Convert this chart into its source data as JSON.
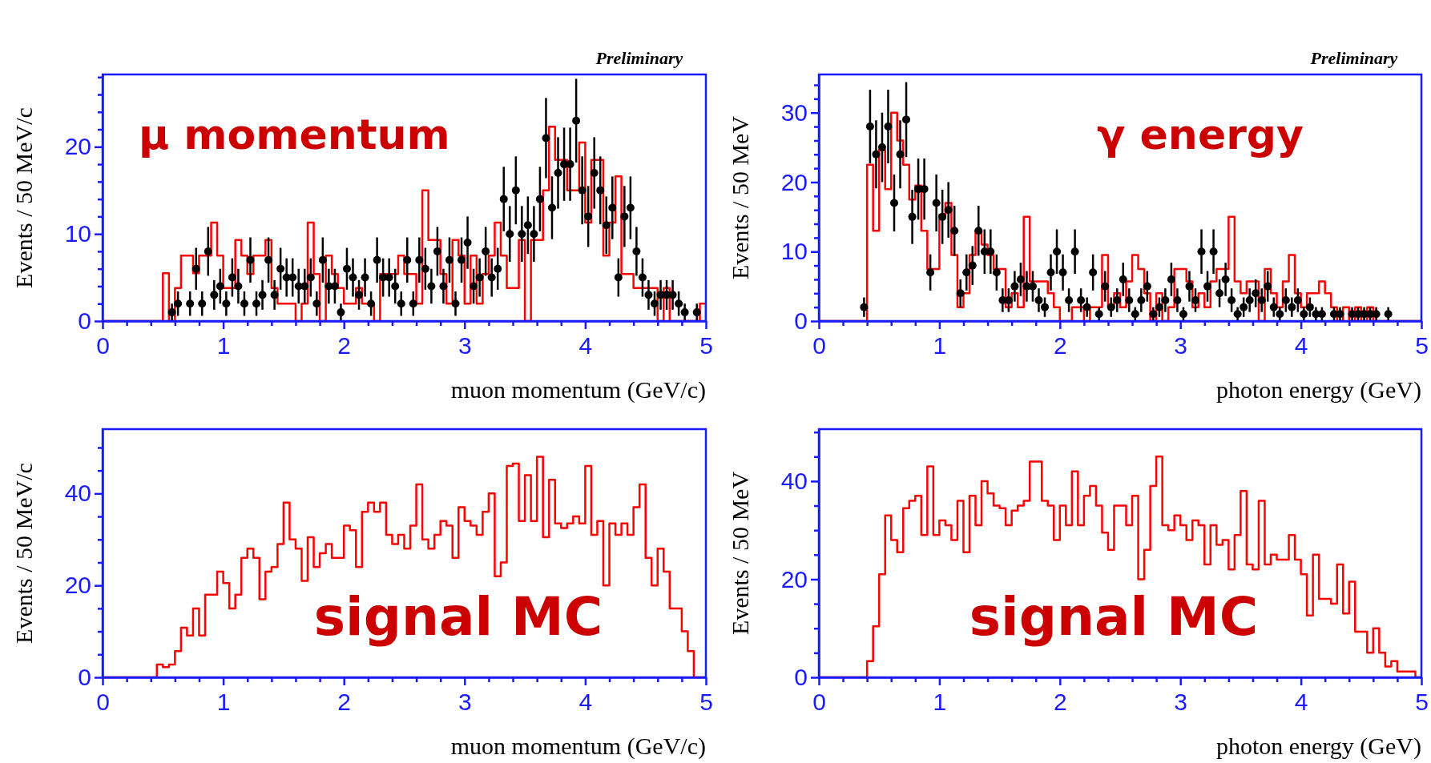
{
  "chart_data": [
    {
      "type": "histogram",
      "xlabel": "muon momentum (GeV/c)",
      "ylabel": "Events / 50 MeV/c",
      "annotations": [
        "Preliminary",
        "μ  momentum"
      ],
      "bins": [
        0,
        0.05,
        0.1,
        0.15,
        0.2,
        0.25,
        0.3,
        0.35,
        0.4,
        0.45,
        0.5,
        0.55,
        0.6,
        0.65,
        0.7,
        0.75,
        0.8,
        0.85,
        0.9,
        0.95,
        1,
        1.05,
        1.1,
        1.15,
        1.2,
        1.25,
        1.3,
        1.35,
        1.4,
        1.45,
        1.5,
        1.55,
        1.6,
        1.65,
        1.7,
        1.75,
        1.8,
        1.85,
        1.9,
        1.95,
        2,
        2.05,
        2.1,
        2.15,
        2.2,
        2.25,
        2.3,
        2.35,
        2.4,
        2.45,
        2.5,
        2.55,
        2.6,
        2.65,
        2.7,
        2.75,
        2.8,
        2.85,
        2.9,
        2.95,
        3,
        3.05,
        3.1,
        3.15,
        3.2,
        3.25,
        3.3,
        3.35,
        3.4,
        3.45,
        3.5,
        3.55,
        3.6,
        3.65,
        3.7,
        3.75,
        3.8,
        3.85,
        3.9,
        3.95,
        4,
        4.05,
        4.1,
        4.15,
        4.2,
        4.25,
        4.3,
        4.35,
        4.4,
        4.45,
        4.5,
        4.55,
        4.6,
        4.65,
        4.7,
        4.75,
        4.8,
        4.85,
        4.9,
        4.95,
        5
      ],
      "series": [
        {
          "type": "histogram",
          "color": "#ff0000",
          "values": [
            0,
            0,
            0,
            0,
            0,
            0,
            0,
            0,
            0,
            0,
            5.5,
            0,
            3.8,
            7.5,
            7.5,
            5.5,
            7.5,
            7.5,
            11.3,
            7.5,
            3.8,
            3.8,
            9.3,
            7.5,
            5.4,
            7.5,
            7.5,
            9.3,
            3.8,
            2,
            2,
            2,
            0,
            2,
            11.3,
            5.4,
            0,
            7.5,
            5.4,
            3.8,
            2,
            2,
            3.8,
            2,
            2,
            0,
            5.4,
            5.4,
            5.4,
            7.5,
            5.4,
            5.4,
            2,
            15,
            9.3,
            9.3,
            5.4,
            2,
            9.3,
            7.5,
            2,
            7.5,
            2,
            5.4,
            7.5,
            11.3,
            7.5,
            3.8,
            3.8,
            9.3,
            0,
            9.3,
            9.3,
            15,
            22.3,
            18.5,
            18.5,
            15,
            15,
            20.5,
            11.3,
            18.5,
            18.5,
            7.5,
            11.3,
            16.6,
            5.4,
            5.4,
            3.8,
            3.8,
            3.8,
            3.8,
            0,
            3.8,
            0,
            0,
            0,
            0,
            0,
            2
          ]
        },
        {
          "type": "scatter",
          "color": "#000000",
          "x": [
            0.575,
            0.625,
            0.675,
            0.725,
            0.775,
            0.825,
            0.875,
            0.925,
            0.975,
            1.025,
            1.075,
            1.125,
            1.175,
            1.225,
            1.275,
            1.325,
            1.375,
            1.425,
            1.475,
            1.525,
            1.575,
            1.625,
            1.675,
            1.725,
            1.775,
            1.825,
            1.875,
            1.925,
            1.975,
            2.025,
            2.075,
            2.125,
            2.175,
            2.225,
            2.275,
            2.325,
            2.375,
            2.425,
            2.475,
            2.525,
            2.575,
            2.625,
            2.675,
            2.725,
            2.775,
            2.825,
            2.875,
            2.925,
            2.975,
            3.025,
            3.075,
            3.125,
            3.175,
            3.225,
            3.275,
            3.325,
            3.375,
            3.425,
            3.475,
            3.525,
            3.575,
            3.625,
            3.675,
            3.725,
            3.775,
            3.825,
            3.875,
            3.925,
            3.975,
            4.025,
            4.075,
            4.125,
            4.175,
            4.225,
            4.275,
            4.325,
            4.375,
            4.425,
            4.475,
            4.525,
            4.575,
            4.625,
            4.675,
            4.725,
            4.775,
            4.825,
            4.875,
            4.925
          ],
          "marker": "circle",
          "values": [
            1,
            2,
            null,
            2,
            6,
            2,
            8,
            3,
            4,
            2,
            5,
            4,
            2,
            7,
            2,
            3,
            7,
            3,
            6,
            5,
            5,
            4,
            4,
            5,
            2,
            7,
            4,
            4,
            1,
            6,
            5,
            3,
            5,
            2,
            7,
            5,
            5,
            4,
            2,
            7,
            2,
            7,
            6,
            4,
            8,
            4,
            7,
            2,
            7,
            9,
            4,
            5,
            8,
            5,
            6,
            14,
            10,
            15,
            10,
            11,
            10,
            14,
            21,
            13,
            17,
            18,
            18,
            23,
            15,
            12,
            17,
            15,
            11,
            13,
            5,
            12,
            13,
            8,
            5,
            3,
            2,
            3,
            3,
            3,
            2,
            1,
            null,
            1
          ],
          "errors": [
            1,
            1.4,
            null,
            1.4,
            2.4,
            1.4,
            2.8,
            1.7,
            2,
            1.4,
            2.2,
            2,
            1.4,
            2.6,
            1.4,
            1.7,
            2.6,
            1.7,
            2.4,
            2.2,
            2.2,
            2,
            2,
            2.2,
            1.4,
            2.6,
            2,
            2,
            1,
            2.4,
            2.2,
            1.7,
            2.2,
            1.4,
            2.6,
            2.2,
            2.2,
            2,
            1.4,
            2.6,
            1.4,
            2.6,
            2.4,
            2,
            2.8,
            2,
            2.6,
            1.4,
            2.6,
            3,
            2,
            2.2,
            2.8,
            2.2,
            2.4,
            3.7,
            3.2,
            3.9,
            3.2,
            3.3,
            3.2,
            3.7,
            4.6,
            3.6,
            4.1,
            4.2,
            4.2,
            4.8,
            3.9,
            3.5,
            4.1,
            3.9,
            3.3,
            3.6,
            2.2,
            3.5,
            3.6,
            2.8,
            2.2,
            1.7,
            1.4,
            1.7,
            1.7,
            1.7,
            1.4,
            1,
            null,
            1
          ]
        }
      ],
      "xlim": [
        0,
        5
      ],
      "xticks": [
        0,
        {
          "value": 0.2,
          "label": null
        },
        {
          "value": 0.4,
          "label": null
        },
        {
          "value": 0.6,
          "label": null
        },
        {
          "value": 0.8,
          "label": null
        },
        1,
        {
          "value": 1.2,
          "label": null
        },
        {
          "value": 1.4,
          "label": null
        },
        {
          "value": 1.6,
          "label": null
        },
        {
          "value": 1.8,
          "label": null
        },
        2,
        {
          "value": 2.2,
          "label": null
        },
        {
          "value": 2.4,
          "label": null
        },
        {
          "value": 2.6,
          "label": null
        },
        {
          "value": 2.8,
          "label": null
        },
        3,
        {
          "value": 3.2,
          "label": null
        },
        {
          "value": 3.4,
          "label": null
        },
        {
          "value": 3.6,
          "label": null
        },
        {
          "value": 3.8,
          "label": null
        },
        4,
        {
          "value": 4.2,
          "label": null
        },
        {
          "value": 4.4,
          "label": null
        },
        {
          "value": 4.6,
          "label": null
        },
        {
          "value": 4.8,
          "label": null
        },
        5
      ],
      "ylim": [
        0,
        28.3
      ],
      "yticks": [
        0,
        {
          "value": 2,
          "label": null
        },
        {
          "value": 4,
          "label": null
        },
        {
          "value": 6,
          "label": null
        },
        {
          "value": 8,
          "label": null
        },
        10,
        {
          "value": 12,
          "label": null
        },
        {
          "value": 14,
          "label": null
        },
        {
          "value": 16,
          "label": null
        },
        {
          "value": 18,
          "label": null
        },
        20,
        {
          "value": 22,
          "label": null
        },
        {
          "value": 24,
          "label": null
        },
        {
          "value": 26,
          "label": null
        },
        {
          "value": 28,
          "label": null
        }
      ]
    },
    {
      "type": "histogram",
      "xlabel": "photon energy (GeV)",
      "ylabel": "Events / 50 MeV",
      "annotations": [
        "Preliminary",
        "γ  energy"
      ],
      "bins": [
        0,
        0.05,
        0.1,
        0.15,
        0.2,
        0.25,
        0.3,
        0.35,
        0.4,
        0.45,
        0.5,
        0.55,
        0.6,
        0.65,
        0.7,
        0.75,
        0.8,
        0.85,
        0.9,
        0.95,
        1,
        1.05,
        1.1,
        1.15,
        1.2,
        1.25,
        1.3,
        1.35,
        1.4,
        1.45,
        1.5,
        1.55,
        1.6,
        1.65,
        1.7,
        1.75,
        1.8,
        1.85,
        1.9,
        1.95,
        2,
        2.05,
        2.1,
        2.15,
        2.2,
        2.25,
        2.3,
        2.35,
        2.4,
        2.45,
        2.5,
        2.55,
        2.6,
        2.65,
        2.7,
        2.75,
        2.8,
        2.85,
        2.9,
        2.95,
        3,
        3.05,
        3.1,
        3.15,
        3.2,
        3.25,
        3.3,
        3.35,
        3.4,
        3.45,
        3.5,
        3.55,
        3.6,
        3.65,
        3.7,
        3.75,
        3.8,
        3.85,
        3.9,
        3.95,
        4,
        4.05,
        4.1,
        4.15,
        4.2,
        4.25,
        4.3,
        4.35,
        4.4,
        4.45,
        4.5,
        4.55,
        4.6,
        4.65,
        4.7,
        4.75,
        4.8,
        4.85,
        4.9,
        4.95,
        5
      ],
      "series": [
        {
          "type": "histogram",
          "color": "#ff0000",
          "values": [
            0,
            0,
            0,
            0,
            0,
            0,
            0,
            0,
            22.5,
            13,
            24.6,
            19,
            30,
            26,
            22.5,
            17.5,
            19.5,
            13,
            7.5,
            7.5,
            15.3,
            17,
            9.5,
            2,
            4,
            9.5,
            13,
            11,
            9.5,
            7.5,
            7.5,
            2,
            4,
            2,
            15,
            5.7,
            5.7,
            5.7,
            4,
            2,
            0,
            0,
            2,
            2,
            0,
            2,
            2,
            9.5,
            2,
            4,
            2,
            5.7,
            9.5,
            7.5,
            4,
            0,
            4,
            0,
            2,
            7.5,
            7.5,
            5.7,
            2,
            4,
            2,
            5.7,
            7.5,
            7.5,
            15,
            5.7,
            4,
            5.7,
            5.7,
            0,
            7.5,
            4,
            2,
            5.7,
            9.5,
            4,
            2,
            4,
            4,
            5.7,
            4,
            2,
            0,
            2,
            0,
            2,
            0,
            2,
            0,
            0,
            0,
            0,
            0,
            0,
            0,
            0
          ]
        },
        {
          "type": "scatter",
          "color": "#000000",
          "x": [
            0.375,
            0.425,
            0.475,
            0.525,
            0.575,
            0.625,
            0.675,
            0.725,
            0.775,
            0.825,
            0.875,
            0.925,
            0.975,
            1.025,
            1.075,
            1.125,
            1.175,
            1.225,
            1.275,
            1.325,
            1.375,
            1.425,
            1.475,
            1.525,
            1.575,
            1.625,
            1.675,
            1.725,
            1.775,
            1.825,
            1.875,
            1.925,
            1.975,
            2.025,
            2.075,
            2.125,
            2.175,
            2.225,
            2.275,
            2.325,
            2.375,
            2.425,
            2.475,
            2.525,
            2.575,
            2.625,
            2.675,
            2.725,
            2.775,
            2.825,
            2.875,
            2.925,
            2.975,
            3.025,
            3.075,
            3.125,
            3.175,
            3.225,
            3.275,
            3.325,
            3.375,
            3.425,
            3.475,
            3.525,
            3.575,
            3.625,
            3.675,
            3.725,
            3.775,
            3.825,
            3.875,
            3.925,
            3.975,
            4.025,
            4.075,
            4.125,
            4.175,
            4.225,
            4.275,
            4.325,
            4.375,
            4.425,
            4.475,
            4.525,
            4.575,
            4.625,
            4.675,
            4.725
          ],
          "marker": "circle",
          "values": [
            2,
            28,
            24,
            25,
            28,
            17,
            24,
            29,
            15,
            19,
            19,
            7,
            17,
            15,
            16,
            13,
            4,
            7,
            8,
            13,
            10,
            10,
            7,
            3,
            3,
            5,
            6,
            5,
            5,
            3,
            2,
            7,
            10,
            7,
            3,
            10,
            3,
            2,
            7,
            1,
            5,
            2,
            3,
            6,
            3,
            1,
            3,
            5,
            1,
            2,
            3,
            6,
            3,
            1,
            5,
            3,
            10,
            5,
            10,
            4,
            6,
            3,
            1,
            2,
            3,
            4,
            3,
            5,
            2,
            1,
            3,
            2,
            3,
            1,
            2,
            1,
            1,
            null,
            1,
            1,
            null,
            1,
            1,
            1,
            1,
            1,
            null,
            1
          ],
          "errors": [
            1.4,
            5.3,
            4.9,
            5,
            5.3,
            4.1,
            4.9,
            5.4,
            3.9,
            4.4,
            4.4,
            2.6,
            4.1,
            3.9,
            4,
            3.6,
            2,
            2.6,
            2.8,
            3.6,
            3.2,
            3.2,
            2.6,
            1.7,
            1.7,
            2.2,
            2.4,
            2.2,
            2.2,
            1.7,
            1.4,
            2.6,
            3.2,
            2.6,
            1.7,
            3.2,
            1.7,
            1.4,
            2.6,
            1,
            2.2,
            1.4,
            1.7,
            2.4,
            1.7,
            1,
            1.7,
            2.2,
            1,
            1.4,
            1.7,
            2.4,
            1.7,
            1,
            2.2,
            1.7,
            3.2,
            2.2,
            3.2,
            2,
            2.4,
            1.7,
            1,
            1.4,
            1.7,
            2,
            1.7,
            2.2,
            1.4,
            1,
            1.7,
            1.4,
            1.7,
            1,
            1.4,
            1,
            1,
            null,
            1,
            1,
            null,
            1,
            1,
            1,
            1,
            1,
            null,
            1
          ]
        }
      ],
      "xlim": [
        0,
        5
      ],
      "xticks": [
        0,
        {
          "value": 0.2,
          "label": null
        },
        {
          "value": 0.4,
          "label": null
        },
        {
          "value": 0.6,
          "label": null
        },
        {
          "value": 0.8,
          "label": null
        },
        1,
        {
          "value": 1.2,
          "label": null
        },
        {
          "value": 1.4,
          "label": null
        },
        {
          "value": 1.6,
          "label": null
        },
        {
          "value": 1.8,
          "label": null
        },
        2,
        {
          "value": 2.2,
          "label": null
        },
        {
          "value": 2.4,
          "label": null
        },
        {
          "value": 2.6,
          "label": null
        },
        {
          "value": 2.8,
          "label": null
        },
        3,
        {
          "value": 3.2,
          "label": null
        },
        {
          "value": 3.4,
          "label": null
        },
        {
          "value": 3.6,
          "label": null
        },
        {
          "value": 3.8,
          "label": null
        },
        4,
        {
          "value": 4.2,
          "label": null
        },
        {
          "value": 4.4,
          "label": null
        },
        {
          "value": 4.6,
          "label": null
        },
        {
          "value": 4.8,
          "label": null
        },
        5
      ],
      "ylim": [
        0,
        35.5
      ],
      "yticks": [
        0,
        {
          "value": 2,
          "label": null
        },
        {
          "value": 4,
          "label": null
        },
        {
          "value": 6,
          "label": null
        },
        {
          "value": 8,
          "label": null
        },
        10,
        {
          "value": 12,
          "label": null
        },
        {
          "value": 14,
          "label": null
        },
        {
          "value": 16,
          "label": null
        },
        {
          "value": 18,
          "label": null
        },
        20,
        {
          "value": 22,
          "label": null
        },
        {
          "value": 24,
          "label": null
        },
        {
          "value": 26,
          "label": null
        },
        {
          "value": 28,
          "label": null
        },
        30,
        {
          "value": 32,
          "label": null
        },
        {
          "value": 34,
          "label": null
        }
      ]
    },
    {
      "type": "histogram",
      "xlabel": "muon momentum (GeV/c)",
      "ylabel": "Events / 50 MeV/c",
      "annotations": [
        "signal MC"
      ],
      "color": "#ff0000",
      "bins": [
        0,
        0.05,
        0.1,
        0.15,
        0.2,
        0.25,
        0.3,
        0.35,
        0.4,
        0.45,
        0.5,
        0.55,
        0.6,
        0.65,
        0.7,
        0.75,
        0.8,
        0.85,
        0.9,
        0.95,
        1,
        1.05,
        1.1,
        1.15,
        1.2,
        1.25,
        1.3,
        1.35,
        1.4,
        1.45,
        1.5,
        1.55,
        1.6,
        1.65,
        1.7,
        1.75,
        1.8,
        1.85,
        1.9,
        1.95,
        2,
        2.05,
        2.1,
        2.15,
        2.2,
        2.25,
        2.3,
        2.35,
        2.4,
        2.45,
        2.5,
        2.55,
        2.6,
        2.65,
        2.7,
        2.75,
        2.8,
        2.85,
        2.9,
        2.95,
        3,
        3.05,
        3.1,
        3.15,
        3.2,
        3.25,
        3.3,
        3.35,
        3.4,
        3.45,
        3.5,
        3.55,
        3.6,
        3.65,
        3.7,
        3.75,
        3.8,
        3.85,
        3.9,
        3.95,
        4,
        4.05,
        4.1,
        4.15,
        4.2,
        4.25,
        4.3,
        4.35,
        4.4,
        4.45,
        4.5,
        4.55,
        4.6,
        4.65,
        4.7,
        4.75,
        4.8,
        4.85,
        4.9,
        4.95,
        5
      ],
      "values": [
        0,
        0,
        0,
        0,
        0,
        0,
        0,
        0,
        0,
        2.8,
        2.2,
        2.8,
        5.7,
        10.8,
        9.1,
        15,
        9.1,
        18,
        18,
        23,
        20.5,
        15,
        18,
        26,
        28,
        26,
        17,
        23,
        24,
        29,
        38,
        30,
        28,
        21,
        30.5,
        24,
        27,
        29,
        26,
        26,
        33,
        32,
        24,
        36,
        38,
        36,
        38,
        31,
        29,
        31,
        28,
        33,
        42,
        30,
        28,
        31,
        34,
        33,
        26,
        37,
        34,
        33,
        31,
        36,
        40,
        22,
        25,
        46,
        46.5,
        34,
        44,
        34,
        48,
        30.5,
        43,
        33.5,
        32.5,
        33.5,
        35,
        33.5,
        46,
        31,
        34,
        20,
        33.5,
        31,
        33.5,
        31,
        37,
        42,
        26,
        20,
        28,
        23,
        15,
        15,
        10,
        5.7,
        0,
        0
      ],
      "xlim": [
        0,
        5
      ],
      "xticks": [
        0,
        {
          "value": 0.2,
          "label": null
        },
        {
          "value": 0.4,
          "label": null
        },
        {
          "value": 0.6,
          "label": null
        },
        {
          "value": 0.8,
          "label": null
        },
        1,
        {
          "value": 1.2,
          "label": null
        },
        {
          "value": 1.4,
          "label": null
        },
        {
          "value": 1.6,
          "label": null
        },
        {
          "value": 1.8,
          "label": null
        },
        2,
        {
          "value": 2.2,
          "label": null
        },
        {
          "value": 2.4,
          "label": null
        },
        {
          "value": 2.6,
          "label": null
        },
        {
          "value": 2.8,
          "label": null
        },
        3,
        {
          "value": 3.2,
          "label": null
        },
        {
          "value": 3.4,
          "label": null
        },
        {
          "value": 3.6,
          "label": null
        },
        {
          "value": 3.8,
          "label": null
        },
        4,
        {
          "value": 4.2,
          "label": null
        },
        {
          "value": 4.4,
          "label": null
        },
        {
          "value": 4.6,
          "label": null
        },
        {
          "value": 4.8,
          "label": null
        },
        5
      ],
      "ylim": [
        0,
        54
      ],
      "yticks": [
        0,
        {
          "value": 5,
          "label": null
        },
        {
          "value": 10,
          "label": null
        },
        {
          "value": 15,
          "label": null
        },
        20,
        {
          "value": 25,
          "label": null
        },
        {
          "value": 30,
          "label": null
        },
        {
          "value": 35,
          "label": null
        },
        40,
        {
          "value": 45,
          "label": null
        },
        {
          "value": 50,
          "label": null
        }
      ]
    },
    {
      "type": "histogram",
      "xlabel": "photon energy (GeV)",
      "ylabel": "Events / 50 MeV",
      "annotations": [
        "signal MC"
      ],
      "color": "#ff0000",
      "bins": [
        0,
        0.05,
        0.1,
        0.15,
        0.2,
        0.25,
        0.3,
        0.35,
        0.4,
        0.45,
        0.5,
        0.55,
        0.6,
        0.65,
        0.7,
        0.75,
        0.8,
        0.85,
        0.9,
        0.95,
        1,
        1.05,
        1.1,
        1.15,
        1.2,
        1.25,
        1.3,
        1.35,
        1.4,
        1.45,
        1.5,
        1.55,
        1.6,
        1.65,
        1.7,
        1.75,
        1.8,
        1.85,
        1.9,
        1.95,
        2,
        2.05,
        2.1,
        2.15,
        2.2,
        2.25,
        2.3,
        2.35,
        2.4,
        2.45,
        2.5,
        2.55,
        2.6,
        2.65,
        2.7,
        2.75,
        2.8,
        2.85,
        2.9,
        2.95,
        3,
        3.05,
        3.1,
        3.15,
        3.2,
        3.25,
        3.3,
        3.35,
        3.4,
        3.45,
        3.5,
        3.55,
        3.6,
        3.65,
        3.7,
        3.75,
        3.8,
        3.85,
        3.9,
        3.95,
        4,
        4.05,
        4.1,
        4.15,
        4.2,
        4.25,
        4.3,
        4.35,
        4.4,
        4.45,
        4.5,
        4.55,
        4.6,
        4.65,
        4.7,
        4.75,
        4.8,
        4.85,
        4.9,
        4.95,
        5
      ],
      "values": [
        0,
        0,
        0,
        0,
        0,
        0,
        0,
        0,
        3.3,
        10.4,
        21,
        33,
        28,
        25.5,
        34.5,
        36,
        37,
        29,
        43,
        29,
        32,
        31,
        28,
        36,
        25.5,
        37,
        31,
        40,
        37.5,
        35,
        34.5,
        31,
        34,
        35,
        36,
        44,
        44,
        36,
        35,
        28,
        35,
        31,
        42,
        31,
        37,
        39,
        35,
        29.5,
        26,
        35,
        35,
        31,
        37,
        20,
        26,
        39,
        45,
        31,
        30,
        33,
        31,
        28,
        32,
        31,
        23,
        31,
        27,
        28,
        22,
        29,
        38,
        23,
        22,
        36,
        23,
        25,
        24,
        24,
        29,
        24,
        21,
        12.6,
        25,
        16,
        16,
        15,
        23,
        13,
        19.5,
        9.3,
        9.3,
        5,
        10,
        5,
        2.2,
        3.3,
        1.2,
        1.2,
        1.2,
        0
      ],
      "xlim": [
        0,
        5
      ],
      "xticks": [
        0,
        {
          "value": 0.2,
          "label": null
        },
        {
          "value": 0.4,
          "label": null
        },
        {
          "value": 0.6,
          "label": null
        },
        {
          "value": 0.8,
          "label": null
        },
        1,
        {
          "value": 1.2,
          "label": null
        },
        {
          "value": 1.4,
          "label": null
        },
        {
          "value": 1.6,
          "label": null
        },
        {
          "value": 1.8,
          "label": null
        },
        2,
        {
          "value": 2.2,
          "label": null
        },
        {
          "value": 2.4,
          "label": null
        },
        {
          "value": 2.6,
          "label": null
        },
        {
          "value": 2.8,
          "label": null
        },
        3,
        {
          "value": 3.2,
          "label": null
        },
        {
          "value": 3.4,
          "label": null
        },
        {
          "value": 3.6,
          "label": null
        },
        {
          "value": 3.8,
          "label": null
        },
        4,
        {
          "value": 4.2,
          "label": null
        },
        {
          "value": 4.4,
          "label": null
        },
        {
          "value": 4.6,
          "label": null
        },
        {
          "value": 4.8,
          "label": null
        },
        5
      ],
      "ylim": [
        0,
        50.6
      ],
      "yticks": [
        0,
        {
          "value": 5,
          "label": null
        },
        {
          "value": 10,
          "label": null
        },
        {
          "value": 15,
          "label": null
        },
        20,
        {
          "value": 25,
          "label": null
        },
        {
          "value": 30,
          "label": null
        },
        {
          "value": 35,
          "label": null
        },
        40,
        {
          "value": 45,
          "label": null
        },
        {
          "value": 50,
          "label": null
        }
      ]
    }
  ]
}
